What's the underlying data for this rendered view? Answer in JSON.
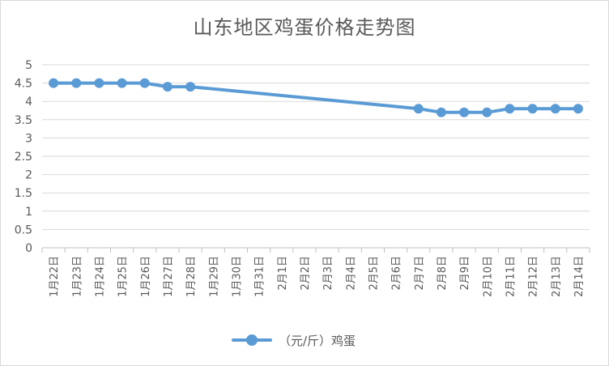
{
  "chart_data": {
    "type": "line",
    "title": "山东地区鸡蛋价格走势图",
    "categories": [
      "1月22日",
      "1月23日",
      "1月24日",
      "1月25日",
      "1月26日",
      "1月27日",
      "1月28日",
      "1月29日",
      "1月30日",
      "1月31日",
      "2月1日",
      "2月2日",
      "2月3日",
      "2月4日",
      "2月5日",
      "2月6日",
      "2月7日",
      "2月8日",
      "2月9日",
      "2月10日",
      "2月11日",
      "2月12日",
      "2月13日",
      "2月14日"
    ],
    "series": [
      {
        "name": "（元/斤）鸡蛋",
        "values": [
          4.5,
          4.5,
          4.5,
          4.5,
          4.5,
          4.4,
          4.4,
          null,
          null,
          null,
          null,
          null,
          null,
          null,
          null,
          null,
          3.8,
          3.7,
          3.7,
          3.7,
          3.8,
          3.8,
          3.8,
          3.8
        ],
        "color": "#5b9bd5"
      }
    ],
    "yticks": [
      "0",
      "0.5",
      "1",
      "1.5",
      "2",
      "2.5",
      "3",
      "3.5",
      "4",
      "4.5",
      "5"
    ],
    "ylim": [
      0,
      5
    ],
    "xlabel": "",
    "ylabel": "",
    "grid": true,
    "legend_position": "bottom",
    "gaps_connected": true
  }
}
